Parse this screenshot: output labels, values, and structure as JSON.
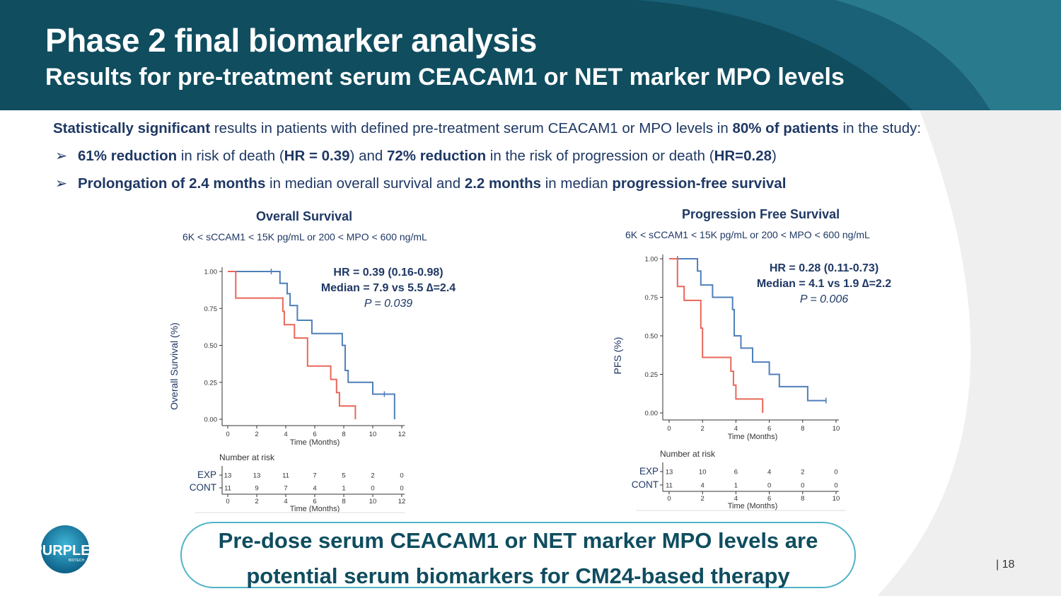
{
  "header": {
    "title": "Phase 2 final biomarker analysis",
    "subtitle": "Results for pre-treatment serum CEACAM1 or NET marker MPO levels"
  },
  "intro": {
    "b1": "Statistically significant",
    "t1": " results in patients with defined pre-treatment serum CEACAM1 or MPO levels in ",
    "b2": "80% of patients",
    "t2": " in the study:"
  },
  "bullets": [
    {
      "arrow": "➢",
      "b1": "61% reduction",
      "t1": " in risk of death (",
      "b2": "HR = 0.39",
      "t2": ") and ",
      "b3": "72% reduction",
      "t3": " in the risk of progression or death (",
      "b4": "HR=0.28",
      "t4": ")"
    },
    {
      "arrow": "➢",
      "b1": "Prolongation of 2.4 months",
      "t1": " in median overall survival and ",
      "b2": "2.2 months",
      "t2": " in median ",
      "b3": "progression-free survival",
      "t3": ""
    }
  ],
  "chart_data": [
    {
      "type": "line",
      "title": "Overall Survival",
      "subtitle": "6K < sCCAM1 < 15K pg/mL or 200 < MPO < 600 ng/mL",
      "xlabel": "Time (Months)",
      "ylabel": "Overall Survival (%)",
      "xlim": [
        0,
        12
      ],
      "ylim": [
        0,
        1
      ],
      "xticks": [
        "0",
        "2",
        "4",
        "6",
        "8",
        "10",
        "12"
      ],
      "yticks": [
        "0.00",
        "0.25",
        "0.50",
        "0.75",
        "1.00"
      ],
      "annotation": {
        "line1": "HR = 0.39 (0.16-0.98)",
        "line2": "Median = 7.9 vs 5.5 ∆=2.4",
        "line3": "P = 0.039"
      },
      "series": [
        {
          "name": "EXP",
          "color": "#4f7fba",
          "points": [
            [
              0,
              1
            ],
            [
              3.6,
              1
            ],
            [
              3.6,
              0.92
            ],
            [
              4.1,
              0.92
            ],
            [
              4.1,
              0.85
            ],
            [
              4.3,
              0.85
            ],
            [
              4.3,
              0.77
            ],
            [
              4.8,
              0.77
            ],
            [
              4.8,
              0.67
            ],
            [
              5.8,
              0.67
            ],
            [
              5.8,
              0.58
            ],
            [
              7.9,
              0.58
            ],
            [
              7.9,
              0.5
            ],
            [
              8.1,
              0.5
            ],
            [
              8.1,
              0.33
            ],
            [
              8.3,
              0.33
            ],
            [
              8.3,
              0.25
            ],
            [
              10,
              0.25
            ],
            [
              10,
              0.17
            ],
            [
              11.5,
              0.17
            ],
            [
              11.5,
              0
            ]
          ],
          "censor": [
            [
              3,
              1
            ],
            [
              10.8,
              0.17
            ]
          ]
        },
        {
          "name": "CONT",
          "color": "#e8675a",
          "points": [
            [
              0,
              1
            ],
            [
              0.55,
              1
            ],
            [
              0.55,
              0.82
            ],
            [
              3.8,
              0.82
            ],
            [
              3.8,
              0.73
            ],
            [
              3.9,
              0.73
            ],
            [
              3.9,
              0.64
            ],
            [
              4.6,
              0.64
            ],
            [
              4.6,
              0.55
            ],
            [
              5.5,
              0.55
            ],
            [
              5.5,
              0.36
            ],
            [
              7.1,
              0.36
            ],
            [
              7.1,
              0.27
            ],
            [
              7.5,
              0.27
            ],
            [
              7.5,
              0.18
            ],
            [
              7.7,
              0.18
            ],
            [
              7.7,
              0.09
            ],
            [
              8.8,
              0.09
            ],
            [
              8.8,
              0
            ]
          ],
          "censor": []
        }
      ],
      "risk_table": {
        "title": "Number at risk",
        "rows": [
          {
            "label": "EXP",
            "values": [
              "13",
              "13",
              "11",
              "7",
              "5",
              "2",
              "0"
            ]
          },
          {
            "label": "CONT",
            "values": [
              "11",
              "9",
              "7",
              "4",
              "1",
              "0",
              "0"
            ]
          }
        ],
        "xticks": [
          "0",
          "2",
          "4",
          "6",
          "8",
          "10",
          "12"
        ],
        "xlabel": "Time (Months)"
      }
    },
    {
      "type": "line",
      "title": "Progression Free Survival",
      "subtitle": "6K < sCCAM1 < 15K pg/mL or 200 < MPO < 600 ng/mL",
      "xlabel": "Time (Months)",
      "ylabel": "PFS (%)",
      "xlim": [
        0,
        10
      ],
      "ylim": [
        0,
        1
      ],
      "xticks": [
        "0",
        "2",
        "4",
        "6",
        "8",
        "10"
      ],
      "yticks": [
        "0.00",
        "0.25",
        "0.50",
        "0.75",
        "1.00"
      ],
      "annotation": {
        "line1": "HR = 0.28 (0.11-0.73)",
        "line2": "Median = 4.1 vs 1.9 ∆=2.2",
        "line3": "P = 0.006"
      },
      "series": [
        {
          "name": "EXP",
          "color": "#4f7fba",
          "points": [
            [
              0,
              1
            ],
            [
              1.7,
              1
            ],
            [
              1.7,
              0.92
            ],
            [
              1.9,
              0.92
            ],
            [
              1.9,
              0.83
            ],
            [
              2.6,
              0.83
            ],
            [
              2.6,
              0.75
            ],
            [
              3.8,
              0.75
            ],
            [
              3.8,
              0.67
            ],
            [
              3.9,
              0.67
            ],
            [
              3.9,
              0.5
            ],
            [
              4.3,
              0.5
            ],
            [
              4.3,
              0.42
            ],
            [
              5,
              0.42
            ],
            [
              5,
              0.33
            ],
            [
              6,
              0.33
            ],
            [
              6,
              0.25
            ],
            [
              6.6,
              0.25
            ],
            [
              6.6,
              0.17
            ],
            [
              8.3,
              0.17
            ],
            [
              8.3,
              0.08
            ],
            [
              9.4,
              0.08
            ]
          ],
          "censor": [
            [
              0.5,
              1
            ],
            [
              9.4,
              0.08
            ]
          ]
        },
        {
          "name": "CONT",
          "color": "#e8675a",
          "points": [
            [
              0,
              1
            ],
            [
              0.5,
              1
            ],
            [
              0.5,
              0.82
            ],
            [
              0.9,
              0.82
            ],
            [
              0.9,
              0.73
            ],
            [
              1.9,
              0.73
            ],
            [
              1.9,
              0.55
            ],
            [
              2,
              0.55
            ],
            [
              2,
              0.36
            ],
            [
              3.7,
              0.36
            ],
            [
              3.7,
              0.27
            ],
            [
              3.85,
              0.27
            ],
            [
              3.85,
              0.18
            ],
            [
              4.0,
              0.18
            ],
            [
              4.0,
              0.09
            ],
            [
              5.6,
              0.09
            ],
            [
              5.6,
              0
            ]
          ],
          "censor": []
        }
      ],
      "risk_table": {
        "title": "Number at risk",
        "rows": [
          {
            "label": "EXP",
            "values": [
              "13",
              "10",
              "6",
              "4",
              "2",
              "0"
            ]
          },
          {
            "label": "CONT",
            "values": [
              "11",
              "4",
              "1",
              "0",
              "0",
              "0"
            ]
          }
        ],
        "xticks": [
          "0",
          "2",
          "4",
          "6",
          "8",
          "10"
        ],
        "xlabel": "Time (Months)"
      }
    }
  ],
  "callout": {
    "line1": "Pre-dose serum CEACAM1 or NET marker MPO levels are",
    "line2": "potential serum biomarkers for CM24-based therapy"
  },
  "logo": {
    "text": "PURPLE",
    "sub": "BIOTECH"
  },
  "page_number": "| 18",
  "colors": {
    "header": "#0f4d5f",
    "accent": "#4fb3c8",
    "text": "#1f3864",
    "exp": "#4f7fba",
    "cont": "#e8675a"
  }
}
